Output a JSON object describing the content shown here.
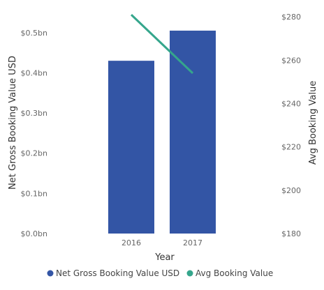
{
  "chart_data": {
    "type": "bar",
    "categories": [
      "2016",
      "2017"
    ],
    "series": [
      {
        "name": "Net Gross Booking Value USD",
        "kind": "bar",
        "axis": "left",
        "color": "#3355A5",
        "values": [
          0.43,
          0.505
        ]
      },
      {
        "name": "Avg Booking Value",
        "kind": "line",
        "axis": "right",
        "color": "#35A68C",
        "values": [
          281,
          254
        ]
      }
    ],
    "xlabel": "Year",
    "ylabel": "Net Gross Booking Value USD",
    "y2label": "Avg Booking Value",
    "ylim": [
      0,
      0.55
    ],
    "y2lim": [
      180,
      282
    ],
    "yticks": [
      "$0.0bn",
      "$0.1bn",
      "$0.2bn",
      "$0.3bn",
      "$0.4bn",
      "$0.5bn"
    ],
    "y2ticks": [
      "$180",
      "$200",
      "$220",
      "$240",
      "$260",
      "$280"
    ],
    "legend_position": "bottom",
    "grid": false
  }
}
